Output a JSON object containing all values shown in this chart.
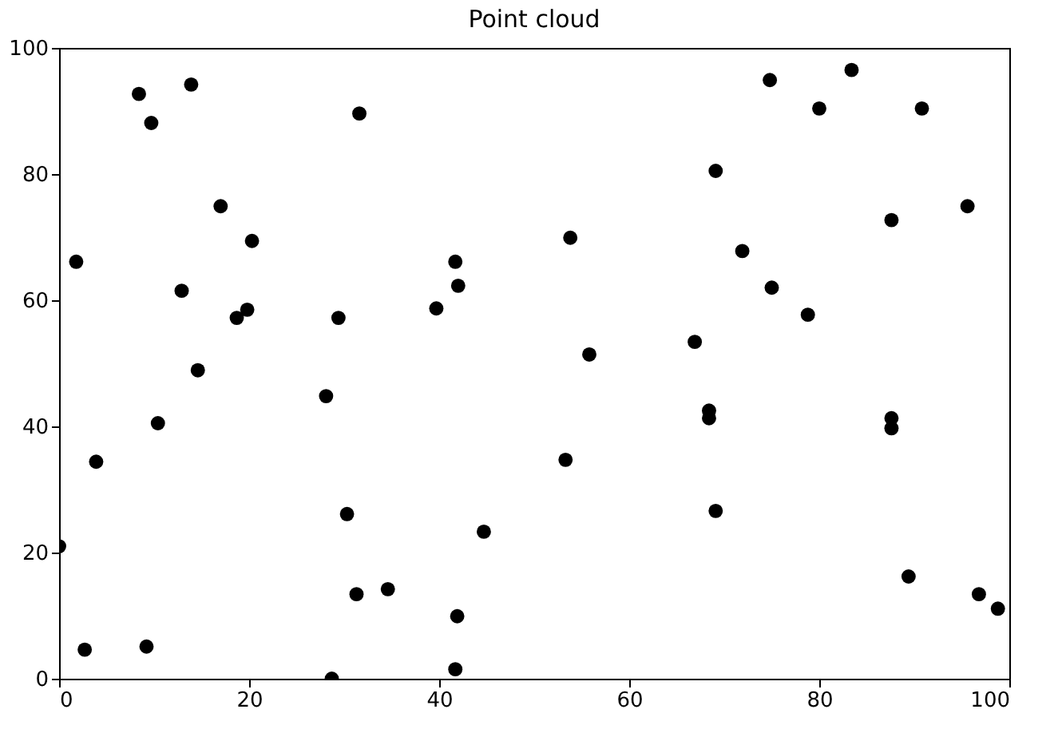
{
  "chart_data": {
    "type": "scatter",
    "title": "Point cloud",
    "x": [
      0,
      1.8,
      2.7,
      3.9,
      8.4,
      9.2,
      9.7,
      10.4,
      12.9,
      13.9,
      14.6,
      17.0,
      18.7,
      19.8,
      20.3,
      28.1,
      28.7,
      29.4,
      30.3,
      31.3,
      31.6,
      34.6,
      39.7,
      41.7,
      42.0,
      41.9,
      41.7,
      44.7,
      53.3,
      53.8,
      55.8,
      66.9,
      68.4,
      68.4,
      69.1,
      69.1,
      71.9,
      74.8,
      75.0,
      78.8,
      80.0,
      83.4,
      87.6,
      87.6,
      87.6,
      89.4,
      90.8,
      95.6,
      96.8,
      98.8
    ],
    "series": [
      {
        "color": "#000000",
        "values": [
          21,
          66.1,
          4.6,
          34.4,
          92.7,
          5.1,
          88.1,
          40.5,
          61.5,
          94.2,
          48.9,
          74.9,
          57.2,
          58.5,
          69.4,
          44.8,
          0,
          57.2,
          26.1,
          13.4,
          89.6,
          14.2,
          58.7,
          66.1,
          62.3,
          9.9,
          1.5,
          23.3,
          34.7,
          69.9,
          51.4,
          53.4,
          42.5,
          41.3,
          80.5,
          26.6,
          67.8,
          94.9,
          62.0,
          57.7,
          90.4,
          96.5,
          72.7,
          41.3,
          39.7,
          16.2,
          90.4,
          74.9,
          13.4,
          11.1
        ]
      }
    ],
    "xlim": [
      0,
      100
    ],
    "ylim": [
      0,
      100
    ],
    "xticks": [
      0,
      20,
      40,
      60,
      80,
      100
    ],
    "yticks": [
      0,
      20,
      40,
      60,
      80,
      100
    ],
    "marker": "circle",
    "grid": false
  }
}
